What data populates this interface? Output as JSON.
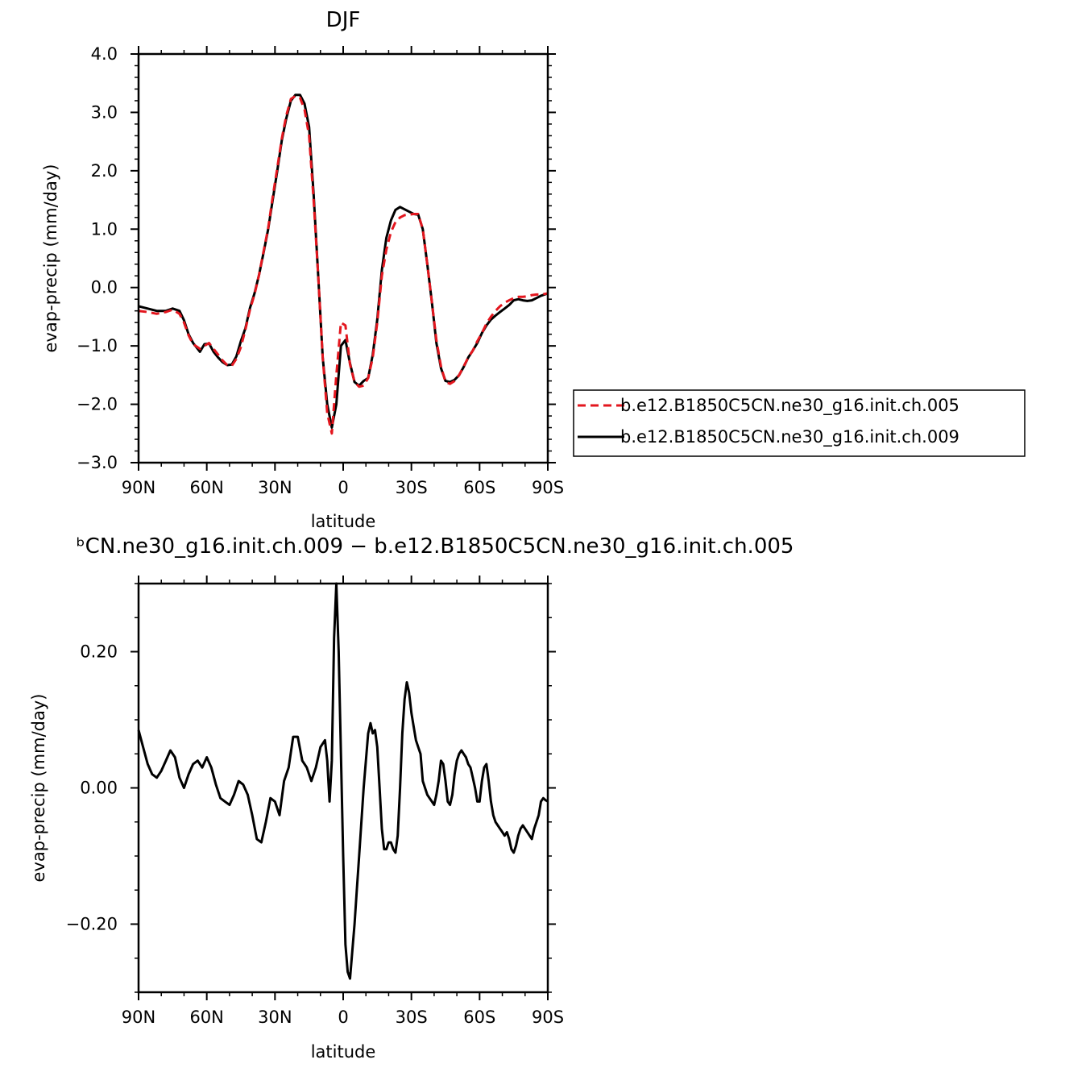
{
  "chart_data": [
    {
      "type": "line",
      "title": "DJF",
      "xlabel": "latitude",
      "ylabel": "evap-precip (mm/day)",
      "xlim": [
        90,
        -90
      ],
      "ylim": [
        -3.0,
        4.0
      ],
      "xticks": [
        90,
        60,
        30,
        0,
        -30,
        -60,
        -90
      ],
      "xtick_labels": [
        "90N",
        "60N",
        "30N",
        "0",
        "30S",
        "60S",
        "90S"
      ],
      "yticks": [
        -3,
        -2,
        -1,
        0,
        1,
        2,
        3,
        4
      ],
      "ytick_labels": [
        "−3.0",
        "−2.0",
        "−1.0",
        "0.0",
        "1.0",
        "2.0",
        "3.0",
        "4.0"
      ],
      "legend_position": "right",
      "series": [
        {
          "name": "b.e12.B1850C5CN.ne30_g16.init.ch.005",
          "color": "#e3161e",
          "dash": "dashed",
          "x": [
            90,
            86,
            82,
            78,
            75,
            72,
            70,
            68,
            66,
            63,
            61,
            59,
            57,
            55,
            53,
            51,
            49,
            47,
            45,
            43,
            41,
            39,
            37,
            35,
            33,
            31,
            29,
            27,
            25,
            23,
            21,
            19,
            17,
            15,
            13,
            11,
            9,
            7,
            5,
            3,
            1,
            -1,
            -3,
            -5,
            -7,
            -9,
            -11,
            -13,
            -15,
            -17,
            -19,
            -21,
            -23,
            -25,
            -27,
            -29,
            -31,
            -33,
            -35,
            -37,
            -39,
            -41,
            -43,
            -45,
            -47,
            -49,
            -51,
            -53,
            -55,
            -57,
            -59,
            -61,
            -63,
            -65,
            -67,
            -69,
            -71,
            -73,
            -75,
            -77,
            -79,
            -81,
            -83,
            -85,
            -87,
            -90
          ],
          "y": [
            -0.4,
            -0.42,
            -0.45,
            -0.42,
            -0.38,
            -0.45,
            -0.6,
            -0.82,
            -0.97,
            -1.05,
            -1.0,
            -0.95,
            -1.05,
            -1.15,
            -1.25,
            -1.33,
            -1.34,
            -1.22,
            -1.02,
            -0.72,
            -0.38,
            -0.12,
            0.22,
            0.62,
            1.02,
            1.55,
            2.05,
            2.55,
            2.95,
            3.23,
            3.28,
            3.25,
            3.05,
            2.6,
            1.5,
            0.2,
            -1.2,
            -2.15,
            -2.5,
            -1.5,
            -0.6,
            -0.65,
            -1.32,
            -1.62,
            -1.7,
            -1.68,
            -1.55,
            -1.2,
            -0.6,
            0.2,
            0.65,
            0.95,
            1.12,
            1.2,
            1.24,
            1.25,
            1.26,
            1.26,
            1.0,
            0.4,
            -0.25,
            -0.9,
            -1.35,
            -1.62,
            -1.65,
            -1.6,
            -1.5,
            -1.35,
            -1.2,
            -1.08,
            -0.92,
            -0.78,
            -0.62,
            -0.5,
            -0.4,
            -0.32,
            -0.26,
            -0.22,
            -0.18,
            -0.16,
            -0.16,
            -0.15,
            -0.13,
            -0.12,
            -0.12,
            -0.1
          ]
        },
        {
          "name": "b.e12.B1850C5CN.ne30_g16.init.ch.009",
          "color": "#000000",
          "dash": "solid",
          "x": [
            90,
            86,
            82,
            78,
            75,
            72,
            70,
            68,
            66,
            63,
            61,
            59,
            57,
            55,
            53,
            51,
            49,
            47,
            45,
            43,
            41,
            39,
            37,
            35,
            33,
            31,
            29,
            27,
            25,
            23,
            21,
            19,
            17,
            15,
            13,
            11,
            9,
            7,
            5,
            3,
            1,
            -1,
            -3,
            -5,
            -7,
            -9,
            -11,
            -13,
            -15,
            -17,
            -19,
            -21,
            -23,
            -25,
            -27,
            -29,
            -31,
            -33,
            -35,
            -37,
            -39,
            -41,
            -43,
            -45,
            -47,
            -49,
            -51,
            -53,
            -55,
            -57,
            -59,
            -61,
            -63,
            -65,
            -67,
            -69,
            -71,
            -73,
            -75,
            -77,
            -79,
            -81,
            -83,
            -85,
            -87,
            -90
          ],
          "y": [
            -0.32,
            -0.36,
            -0.4,
            -0.4,
            -0.36,
            -0.4,
            -0.56,
            -0.8,
            -0.95,
            -1.1,
            -0.97,
            -0.96,
            -1.1,
            -1.2,
            -1.28,
            -1.33,
            -1.32,
            -1.18,
            -0.92,
            -0.7,
            -0.35,
            -0.1,
            0.22,
            0.6,
            1.0,
            1.5,
            2.0,
            2.52,
            2.9,
            3.2,
            3.3,
            3.3,
            3.15,
            2.75,
            1.6,
            0.2,
            -1.2,
            -2.0,
            -2.4,
            -2.0,
            -1.0,
            -0.9,
            -1.3,
            -1.62,
            -1.68,
            -1.6,
            -1.55,
            -1.15,
            -0.55,
            0.3,
            0.85,
            1.15,
            1.33,
            1.38,
            1.34,
            1.3,
            1.26,
            1.25,
            1.0,
            0.4,
            -0.25,
            -0.95,
            -1.38,
            -1.6,
            -1.62,
            -1.58,
            -1.5,
            -1.36,
            -1.2,
            -1.08,
            -0.95,
            -0.78,
            -0.65,
            -0.55,
            -0.48,
            -0.42,
            -0.36,
            -0.3,
            -0.22,
            -0.2,
            -0.22,
            -0.23,
            -0.22,
            -0.18,
            -0.14,
            -0.1
          ]
        }
      ]
    },
    {
      "type": "line",
      "title": "ᵇCN.ne30_g16.init.ch.009 − b.e12.B1850C5CN.ne30_g16.init.ch.005",
      "xlabel": "latitude",
      "ylabel": "evap-precip (mm/day)",
      "xlim": [
        90,
        -90
      ],
      "ylim": [
        -0.3,
        0.3
      ],
      "xticks": [
        90,
        60,
        30,
        0,
        -30,
        -60,
        -90
      ],
      "xtick_labels": [
        "90N",
        "60N",
        "30N",
        "0",
        "30S",
        "60S",
        "90S"
      ],
      "yticks": [
        -0.2,
        0.0,
        0.2
      ],
      "ytick_labels": [
        "−0.20",
        "0.00",
        "0.20"
      ],
      "series": [
        {
          "color": "#000000",
          "dash": "solid",
          "x": [
            90,
            88,
            86,
            84,
            82,
            80,
            78,
            76,
            74,
            72,
            70,
            68,
            66,
            64,
            62,
            60,
            58,
            56,
            54,
            52,
            50,
            48,
            46,
            44,
            42,
            40,
            38,
            36,
            34,
            32,
            30,
            28,
            26,
            24,
            22,
            20,
            18,
            16,
            14,
            12,
            10,
            8,
            7,
            6,
            5,
            4,
            3,
            2,
            1,
            0,
            -1,
            -2,
            -3,
            -4,
            -5,
            -6,
            -7,
            -8,
            -9,
            -10,
            -11,
            -12,
            -13,
            -14,
            -15,
            -16,
            -17,
            -18,
            -19,
            -20,
            -21,
            -22,
            -23,
            -24,
            -25,
            -26,
            -27,
            -28,
            -29,
            -30,
            -31,
            -32,
            -33,
            -34,
            -35,
            -36,
            -37,
            -38,
            -39,
            -40,
            -41,
            -42,
            -43,
            -44,
            -45,
            -46,
            -47,
            -48,
            -49,
            -50,
            -51,
            -52,
            -53,
            -54,
            -55,
            -56,
            -57,
            -58,
            -59,
            -60,
            -61,
            -62,
            -63,
            -64,
            -65,
            -66,
            -67,
            -68,
            -69,
            -70,
            -71,
            -72,
            -73,
            -74,
            -75,
            -76,
            -77,
            -78,
            -79,
            -80,
            -81,
            -82,
            -83,
            -84,
            -85,
            -86,
            -87,
            -88,
            -89,
            -90
          ],
          "y": [
            0.085,
            0.06,
            0.035,
            0.02,
            0.015,
            0.025,
            0.04,
            0.055,
            0.045,
            0.015,
            0.0,
            0.02,
            0.035,
            0.04,
            0.03,
            0.045,
            0.03,
            0.005,
            -0.015,
            -0.02,
            -0.025,
            -0.01,
            0.01,
            0.005,
            -0.01,
            -0.04,
            -0.075,
            -0.08,
            -0.05,
            -0.015,
            -0.02,
            -0.04,
            0.01,
            0.03,
            0.075,
            0.075,
            0.04,
            0.03,
            0.01,
            0.03,
            0.06,
            0.07,
            0.04,
            -0.02,
            0.04,
            0.22,
            0.3,
            0.2,
            0.05,
            -0.1,
            -0.23,
            -0.27,
            -0.28,
            -0.24,
            -0.2,
            -0.15,
            -0.1,
            -0.05,
            0.0,
            0.04,
            0.08,
            0.095,
            0.08,
            0.085,
            0.06,
            0.0,
            -0.06,
            -0.09,
            -0.09,
            -0.08,
            -0.08,
            -0.09,
            -0.095,
            -0.07,
            0.0,
            0.08,
            0.13,
            0.155,
            0.14,
            0.11,
            0.09,
            0.07,
            0.06,
            0.05,
            0.01,
            0.0,
            -0.01,
            -0.015,
            -0.02,
            -0.025,
            -0.01,
            0.01,
            0.04,
            0.035,
            0.01,
            -0.02,
            -0.025,
            -0.01,
            0.02,
            0.04,
            0.05,
            0.055,
            0.05,
            0.045,
            0.035,
            0.03,
            0.015,
            0.0,
            -0.02,
            -0.02,
            0.01,
            0.03,
            0.035,
            0.01,
            -0.02,
            -0.04,
            -0.05,
            -0.055,
            -0.06,
            -0.065,
            -0.07,
            -0.065,
            -0.075,
            -0.09,
            -0.095,
            -0.085,
            -0.07,
            -0.06,
            -0.055,
            -0.06,
            -0.065,
            -0.07,
            -0.075,
            -0.06,
            -0.05,
            -0.04,
            -0.02,
            -0.015,
            -0.018,
            -0.02
          ]
        }
      ]
    }
  ]
}
